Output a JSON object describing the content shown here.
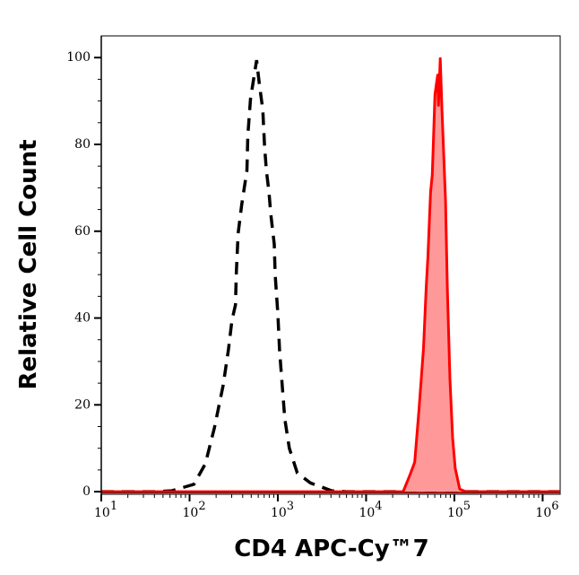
{
  "chart_data": {
    "type": "area",
    "title": "",
    "xlabel": "CD4 APC-Cy™7",
    "ylabel": "Relative Cell Count",
    "x_scale": "log",
    "xlim": [
      10,
      1580000
    ],
    "ylim": [
      -0.6,
      105
    ],
    "x_ticks": [
      {
        "base": "10",
        "exp": "1",
        "value": 10
      },
      {
        "base": "10",
        "exp": "2",
        "value": 100
      },
      {
        "base": "10",
        "exp": "3",
        "value": 1000
      },
      {
        "base": "10",
        "exp": "4",
        "value": 10000
      },
      {
        "base": "10",
        "exp": "5",
        "value": 100000
      },
      {
        "base": "10",
        "exp": "6",
        "value": 1000000
      }
    ],
    "y_ticks": [
      "0",
      "20",
      "40",
      "60",
      "80",
      "100"
    ],
    "grid": false,
    "series": [
      {
        "style": "dashed-line",
        "color": "#000000",
        "points": [
          [
            10,
            0
          ],
          [
            40,
            0
          ],
          [
            63,
            0.2
          ],
          [
            112,
            1.7
          ],
          [
            151,
            6.4
          ],
          [
            191,
            14.7
          ],
          [
            240,
            24.4
          ],
          [
            275,
            32.6
          ],
          [
            302,
            39.5
          ],
          [
            331,
            43
          ],
          [
            339,
            50.6
          ],
          [
            355,
            59.5
          ],
          [
            389,
            66
          ],
          [
            447,
            74
          ],
          [
            457,
            82
          ],
          [
            490,
            90.5
          ],
          [
            575,
            99.4
          ],
          [
            617,
            94
          ],
          [
            676,
            88
          ],
          [
            708,
            79.5
          ],
          [
            741,
            74
          ],
          [
            794,
            69
          ],
          [
            832,
            64
          ],
          [
            912,
            57
          ],
          [
            933,
            50
          ],
          [
            1000,
            41
          ],
          [
            1047,
            32.6
          ],
          [
            1122,
            24.4
          ],
          [
            1202,
            16.7
          ],
          [
            1349,
            10
          ],
          [
            1660,
            4.3
          ],
          [
            2344,
            2
          ],
          [
            4074,
            0.2
          ],
          [
            6000,
            0
          ],
          [
            1580000,
            0
          ]
        ]
      },
      {
        "style": "filled",
        "color": "#ff0000",
        "fill": "#ff9999",
        "points": [
          [
            10,
            0
          ],
          [
            20000,
            0
          ],
          [
            26300,
            0
          ],
          [
            31600,
            4
          ],
          [
            35500,
            6.8
          ],
          [
            39800,
            19
          ],
          [
            44700,
            33
          ],
          [
            47900,
            47
          ],
          [
            50100,
            54
          ],
          [
            53700,
            69
          ],
          [
            56200,
            73
          ],
          [
            60300,
            91.5
          ],
          [
            64600,
            96
          ],
          [
            66100,
            89
          ],
          [
            69200,
            99.8
          ],
          [
            72400,
            88
          ],
          [
            79400,
            67
          ],
          [
            83200,
            47
          ],
          [
            89100,
            26
          ],
          [
            95500,
            12.4
          ],
          [
            102300,
            5.4
          ],
          [
            114800,
            0.6
          ],
          [
            134900,
            0
          ],
          [
            1580000,
            0
          ]
        ]
      }
    ]
  }
}
